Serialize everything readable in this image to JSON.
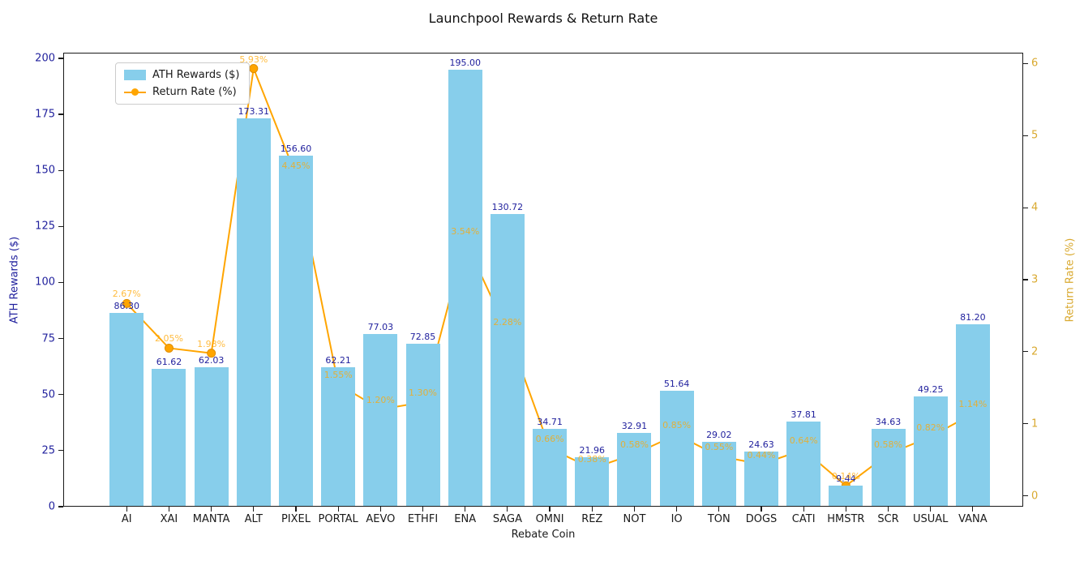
{
  "chart_data": {
    "type": "bar",
    "title": "Launchpool Rewards & Return Rate",
    "xlabel": "Rebate Coin",
    "ylabel_left": "ATH Rewards ($)",
    "ylabel_right": "Return Rate (%)",
    "legend_position": "upper-left-inside",
    "grid": false,
    "categories": [
      "AI",
      "XAI",
      "MANTA",
      "ALT",
      "PIXEL",
      "PORTAL",
      "AEVO",
      "ETHFI",
      "ENA",
      "SAGA",
      "OMNI",
      "REZ",
      "NOT",
      "IO",
      "TON",
      "DOGS",
      "CATI",
      "HMSTR",
      "SCR",
      "USUAL",
      "VANA"
    ],
    "series": [
      {
        "name": "ATH Rewards ($)",
        "type": "bar",
        "axis": "left",
        "color": "#87CEEB",
        "values": [
          86.3,
          61.62,
          62.03,
          173.31,
          156.6,
          62.21,
          77.03,
          72.85,
          195.0,
          130.72,
          34.71,
          21.96,
          32.91,
          51.64,
          29.02,
          24.63,
          37.81,
          9.44,
          34.63,
          49.25,
          81.2
        ],
        "labels": [
          "86.30",
          "61.62",
          "62.03",
          "173.31",
          "156.60",
          "62.21",
          "77.03",
          "72.85",
          "195.00",
          "130.72",
          "34.71",
          "21.96",
          "32.91",
          "51.64",
          "29.02",
          "24.63",
          "37.81",
          "9.44",
          "34.63",
          "49.25",
          "81.20"
        ]
      },
      {
        "name": "Return Rate (%)",
        "type": "line",
        "axis": "right",
        "color": "#FFA500",
        "values": [
          2.67,
          2.05,
          1.98,
          5.93,
          4.45,
          1.55,
          1.2,
          1.3,
          3.54,
          2.28,
          0.66,
          0.38,
          0.58,
          0.85,
          0.55,
          0.44,
          0.64,
          0.14,
          0.58,
          0.82,
          1.14
        ],
        "labels": [
          "2.67%",
          "2.05%",
          "1.98%",
          "5.93%",
          "4.45%",
          "1.55%",
          "1.20%",
          "1.30%",
          "3.54%",
          "2.28%",
          "0.66%",
          "0.38%",
          "0.58%",
          "0.85%",
          "0.55%",
          "0.44%",
          "0.64%",
          "0.14%",
          "0.58%",
          "0.82%",
          "1.14%"
        ]
      }
    ],
    "y_left": {
      "ticks": [
        0,
        25,
        50,
        75,
        100,
        125,
        150,
        175,
        200
      ],
      "lim": [
        0,
        202.5
      ]
    },
    "y_right": {
      "ticks": [
        0,
        1,
        2,
        3,
        4,
        5,
        6
      ],
      "lim": [
        -0.15,
        6.15
      ]
    }
  },
  "legend": {
    "items": [
      {
        "label": "ATH Rewards ($)",
        "marker": "bar-swatch",
        "color": "#87CEEB"
      },
      {
        "label": "Return Rate (%)",
        "marker": "line-dot",
        "color": "#FFA500"
      }
    ]
  },
  "colors": {
    "bar": "#87CEEB",
    "line": "#FFA500",
    "bar_value_label": "#22229e",
    "left_axis_text": "#22229e",
    "right_axis_text": "#d9a92f",
    "rate_label": "rgba(255,165,0,0.75)",
    "axis_frame": "#1a1a1a"
  }
}
